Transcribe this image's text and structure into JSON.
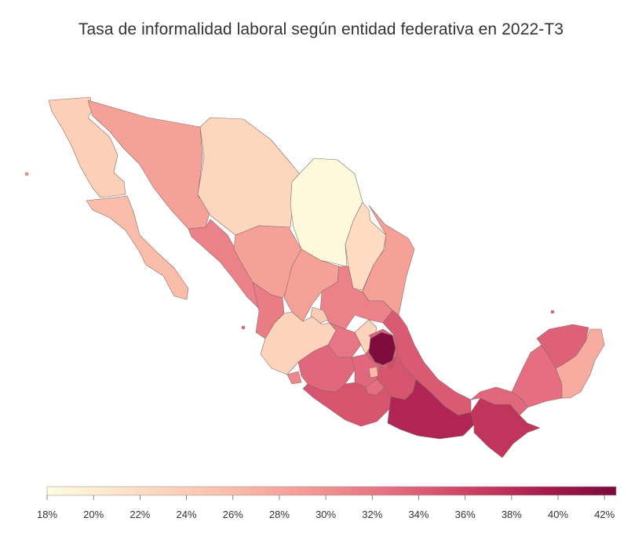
{
  "title": "Tasa de informalidad laboral según entidad federativa en 2022-T3",
  "legend": {
    "min": 18,
    "max": 42.5,
    "ticks": [
      "18%",
      "20%",
      "22%",
      "24%",
      "26%",
      "28%",
      "30%",
      "32%",
      "34%",
      "36%",
      "38%",
      "40%",
      "42%"
    ],
    "colors": [
      "#fffde0",
      "#fde0c5",
      "#fbc2ad",
      "#f59c94",
      "#e56f80",
      "#cc3f63",
      "#a51a4c",
      "#7a0a3a"
    ]
  },
  "states": {
    "baja-california": 23.5,
    "baja-california-sur": 25.5,
    "sonora": 28.0,
    "chihuahua": 22.5,
    "coahuila": 18.5,
    "nuevo-leon": 22.0,
    "tamaulipas": 28.0,
    "sinaloa": 30.5,
    "durango": 28.0,
    "zacatecas": 28.0,
    "san-luis-potosi": 30.5,
    "nayarit": 31.0,
    "aguascalientes": 24.0,
    "jalisco": 23.0,
    "guanajuato": 31.5,
    "queretaro": 23.0,
    "hidalgo": 33.0,
    "veracruz": 33.5,
    "colima": 30.0,
    "michoacan": 32.5,
    "edomex": 32.5,
    "cdmx": 26.0,
    "tlaxcala": 34.5,
    "morelos": 32.0,
    "puebla": 34.0,
    "guerrero": 34.0,
    "oaxaca": 38.0,
    "chiapas": 36.5,
    "tabasco": 32.5,
    "campeche": 32.0,
    "yucatan": 33.0,
    "quintana-roo": 27.0,
    "hidalgo-core": 42.0
  }
}
